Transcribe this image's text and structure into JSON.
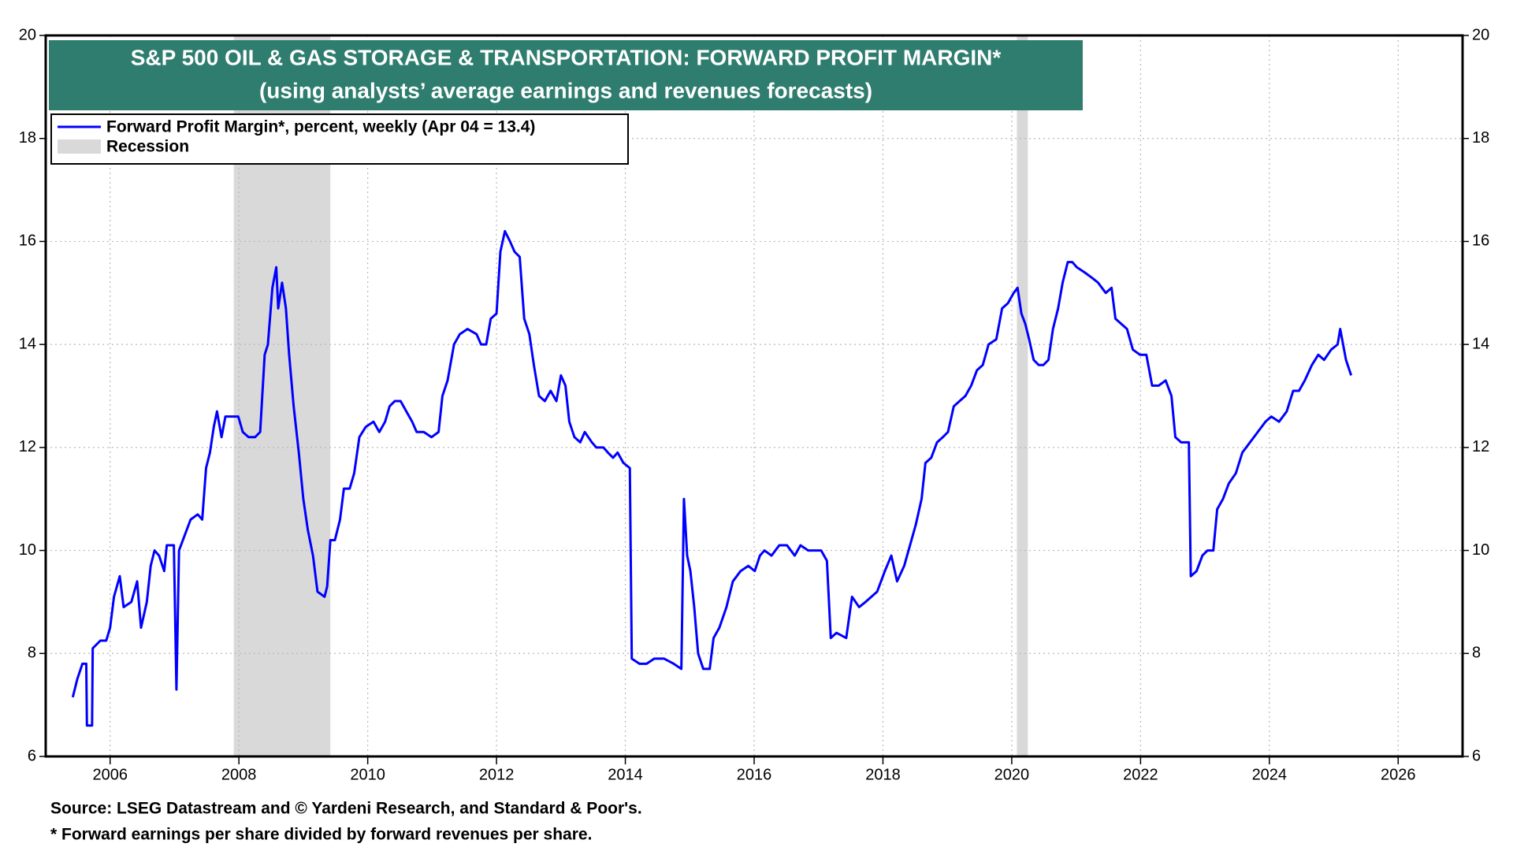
{
  "chart_data": {
    "type": "line",
    "title": "S&P 500 OIL & GAS STORAGE & TRANSPORTATION: FORWARD PROFIT MARGIN*",
    "subtitle": "(using analysts’ average earnings and revenues forecasts)",
    "source": "Source: LSEG Datastream and © Yardeni Research, and Standard & Poor's.",
    "footnote": "* Forward earnings per share divided by forward revenues per share.",
    "recession_label": "Recession",
    "recession_color": "#d9d9d9",
    "recessions": [
      [
        2007.92,
        2009.42
      ],
      [
        2020.08,
        2020.25
      ]
    ],
    "xlim": [
      2005,
      2027
    ],
    "xticks": [
      2006,
      2008,
      2010,
      2012,
      2014,
      2016,
      2018,
      2020,
      2022,
      2024,
      2026
    ],
    "ylim": [
      6,
      20
    ],
    "yticks": [
      6,
      8,
      10,
      12,
      14,
      16,
      18,
      20
    ],
    "grid": true,
    "legend": "upper left",
    "x": [
      2005.42,
      2005.49,
      2005.57,
      2005.63,
      2005.64,
      2005.72,
      2005.73,
      2005.85,
      2005.94,
      2006.0,
      2006.06,
      2006.15,
      2006.21,
      2006.33,
      2006.42,
      2006.48,
      2006.57,
      2006.63,
      2006.69,
      2006.76,
      2006.84,
      2006.88,
      2006.99,
      2007.03,
      2007.07,
      2007.16,
      2007.25,
      2007.36,
      2007.43,
      2007.49,
      2007.55,
      2007.61,
      2007.66,
      2007.73,
      2007.79,
      2007.88,
      2007.99,
      2008.06,
      2008.15,
      2008.25,
      2008.33,
      2008.4,
      2008.45,
      2008.52,
      2008.58,
      2008.61,
      2008.67,
      2008.73,
      2008.78,
      2008.85,
      2008.93,
      2009.0,
      2009.07,
      2009.15,
      2009.22,
      2009.33,
      2009.37,
      2009.42,
      2009.49,
      2009.57,
      2009.63,
      2009.72,
      2009.79,
      2009.87,
      2009.97,
      2010.09,
      2010.18,
      2010.27,
      2010.34,
      2010.42,
      2010.51,
      2010.6,
      2010.69,
      2010.76,
      2010.87,
      2010.99,
      2011.1,
      2011.16,
      2011.24,
      2011.34,
      2011.43,
      2011.55,
      2011.69,
      2011.76,
      2011.84,
      2011.91,
      2012.0,
      2012.06,
      2012.13,
      2012.21,
      2012.28,
      2012.36,
      2012.43,
      2012.51,
      2012.58,
      2012.66,
      2012.75,
      2012.84,
      2012.93,
      2013.0,
      2013.07,
      2013.13,
      2013.21,
      2013.3,
      2013.37,
      2013.48,
      2013.55,
      2013.66,
      2013.73,
      2013.81,
      2013.88,
      2013.97,
      2014.07,
      2014.1,
      2014.22,
      2014.33,
      2014.45,
      2014.6,
      2014.75,
      2014.87,
      2014.91,
      2014.96,
      2015.01,
      2015.07,
      2015.13,
      2015.21,
      2015.31,
      2015.37,
      2015.46,
      2015.57,
      2015.67,
      2015.79,
      2015.91,
      2016.01,
      2016.09,
      2016.16,
      2016.27,
      2016.39,
      2016.51,
      2016.63,
      2016.72,
      2016.84,
      2016.96,
      2017.04,
      2017.13,
      2017.19,
      2017.28,
      2017.43,
      2017.52,
      2017.63,
      2017.73,
      2017.82,
      2017.91,
      2018.03,
      2018.13,
      2018.22,
      2018.33,
      2018.42,
      2018.51,
      2018.6,
      2018.66,
      2018.75,
      2018.84,
      2018.93,
      2019.01,
      2019.1,
      2019.19,
      2019.28,
      2019.37,
      2019.46,
      2019.55,
      2019.64,
      2019.76,
      2019.85,
      2019.94,
      2020.03,
      2020.09,
      2020.15,
      2020.21,
      2020.27,
      2020.34,
      2020.42,
      2020.49,
      2020.57,
      2020.64,
      2020.72,
      2020.79,
      2020.87,
      2020.94,
      2021.01,
      2021.13,
      2021.24,
      2021.34,
      2021.46,
      2021.55,
      2021.61,
      2021.7,
      2021.79,
      2021.88,
      2021.99,
      2022.09,
      2022.18,
      2022.28,
      2022.39,
      2022.48,
      2022.54,
      2022.63,
      2022.75,
      2022.78,
      2022.87,
      2022.96,
      2023.04,
      2023.13,
      2023.19,
      2023.28,
      2023.37,
      2023.48,
      2023.58,
      2023.7,
      2023.82,
      2023.94,
      2024.03,
      2024.15,
      2024.27,
      2024.37,
      2024.46,
      2024.55,
      2024.66,
      2024.76,
      2024.85,
      2024.96,
      2025.06,
      2025.1,
      2025.19,
      2025.27
    ],
    "series": [
      {
        "name": "Forward Profit Margin*, percent, weekly (Apr 04 = 13.4)",
        "color": "#0000ff",
        "values": [
          7.15,
          7.5,
          7.8,
          7.8,
          6.6,
          6.6,
          8.1,
          8.25,
          8.25,
          8.5,
          9.1,
          9.5,
          8.9,
          9.0,
          9.4,
          8.5,
          9.0,
          9.7,
          10.0,
          9.9,
          9.6,
          10.1,
          10.1,
          7.3,
          10.0,
          10.3,
          10.6,
          10.7,
          10.6,
          11.6,
          11.9,
          12.4,
          12.7,
          12.2,
          12.6,
          12.6,
          12.6,
          12.3,
          12.2,
          12.2,
          12.3,
          13.8,
          14.0,
          15.1,
          15.5,
          14.7,
          15.2,
          14.7,
          13.8,
          12.8,
          11.9,
          11.0,
          10.4,
          9.9,
          9.2,
          9.1,
          9.3,
          10.2,
          10.2,
          10.6,
          11.2,
          11.2,
          11.5,
          12.2,
          12.4,
          12.5,
          12.3,
          12.5,
          12.8,
          12.9,
          12.9,
          12.7,
          12.5,
          12.3,
          12.3,
          12.2,
          12.3,
          13.0,
          13.3,
          14.0,
          14.2,
          14.3,
          14.2,
          14.0,
          14.0,
          14.5,
          14.6,
          15.8,
          16.2,
          16.0,
          15.8,
          15.7,
          14.5,
          14.2,
          13.6,
          13.0,
          12.9,
          13.1,
          12.9,
          13.4,
          13.2,
          12.5,
          12.2,
          12.1,
          12.3,
          12.1,
          12.0,
          12.0,
          11.9,
          11.8,
          11.9,
          11.7,
          11.6,
          7.9,
          7.8,
          7.8,
          7.9,
          7.9,
          7.8,
          7.7,
          11.0,
          9.9,
          9.6,
          8.9,
          8.0,
          7.7,
          7.7,
          8.3,
          8.5,
          8.9,
          9.4,
          9.6,
          9.7,
          9.6,
          9.9,
          10.0,
          9.9,
          10.1,
          10.1,
          9.9,
          10.1,
          10.0,
          10.0,
          10.0,
          9.8,
          8.3,
          8.4,
          8.3,
          9.1,
          8.9,
          9.0,
          9.1,
          9.2,
          9.6,
          9.9,
          9.4,
          9.7,
          10.1,
          10.5,
          11.0,
          11.7,
          11.8,
          12.1,
          12.2,
          12.3,
          12.8,
          12.9,
          13.0,
          13.2,
          13.5,
          13.6,
          14.0,
          14.1,
          14.7,
          14.8,
          15.0,
          15.1,
          14.6,
          14.4,
          14.1,
          13.7,
          13.6,
          13.6,
          13.7,
          14.3,
          14.7,
          15.2,
          15.6,
          15.6,
          15.5,
          15.4,
          15.3,
          15.2,
          15.0,
          15.1,
          14.5,
          14.4,
          14.3,
          13.9,
          13.8,
          13.8,
          13.2,
          13.2,
          13.3,
          13.0,
          12.2,
          12.1,
          12.1,
          9.5,
          9.6,
          9.9,
          10.0,
          10.0,
          10.8,
          11.0,
          11.3,
          11.5,
          11.9,
          12.1,
          12.3,
          12.5,
          12.6,
          12.5,
          12.7,
          13.1,
          13.1,
          13.3,
          13.6,
          13.8,
          13.7,
          13.9,
          14.0,
          14.3,
          13.7,
          13.4
        ]
      }
    ]
  }
}
